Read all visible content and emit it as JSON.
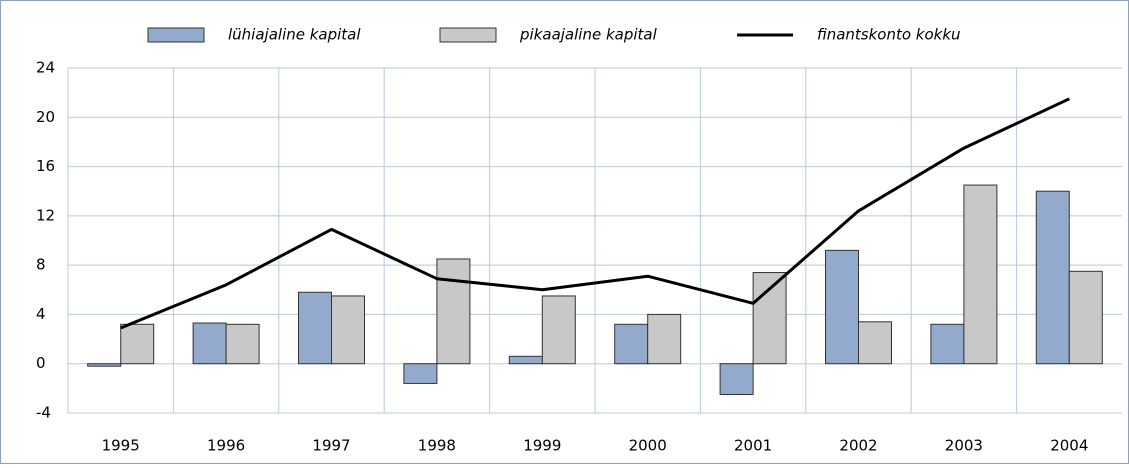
{
  "chart_data": {
    "type": "bar-line",
    "categories": [
      "1995",
      "1996",
      "1997",
      "1998",
      "1999",
      "2000",
      "2001",
      "2002",
      "2003",
      "2004"
    ],
    "series": [
      {
        "name": "lühiajaline kapital",
        "type": "bar",
        "color": "#94aacd",
        "values": [
          -0.2,
          3.3,
          5.8,
          -1.6,
          0.6,
          3.2,
          -2.5,
          9.2,
          3.2,
          14.0
        ]
      },
      {
        "name": "pikaajaline kapital",
        "type": "bar",
        "color": "#c8c8c8",
        "values": [
          3.2,
          3.2,
          5.5,
          8.5,
          5.5,
          4.0,
          7.4,
          3.4,
          14.5,
          7.5
        ]
      },
      {
        "name": "finantskonto kokku",
        "type": "line",
        "color": "#000000",
        "values": [
          2.9,
          6.4,
          10.9,
          6.9,
          6.0,
          7.1,
          4.9,
          12.4,
          17.5,
          21.5
        ]
      }
    ],
    "ylim": [
      -4,
      24
    ],
    "yticks": [
      -4,
      0,
      4,
      8,
      12,
      16,
      20,
      24
    ],
    "grid": true,
    "legend": "top"
  }
}
